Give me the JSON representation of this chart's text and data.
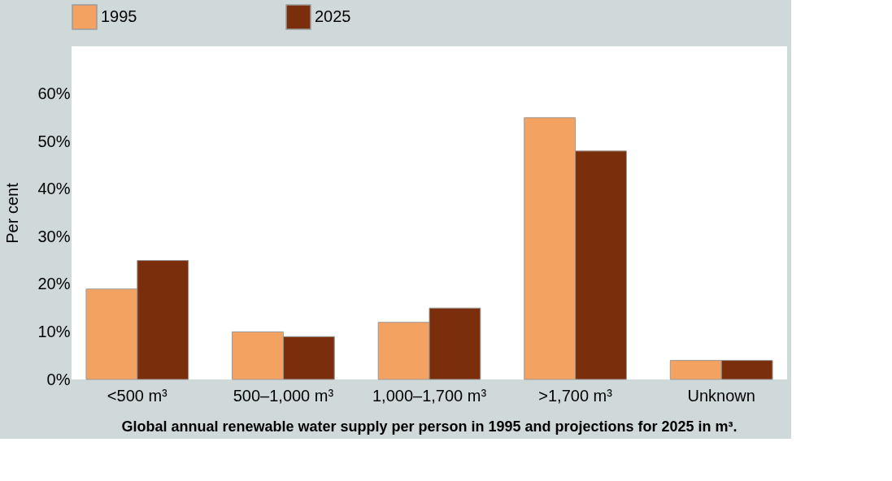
{
  "chart_data": {
    "type": "bar",
    "title": "Global annual renewable water supply per person in 1995 and projections for 2025 in m³.",
    "ylabel": "Per cent",
    "categories": [
      "<500 m³",
      "500–1,000 m³",
      "1,000–1,700 m³",
      ">1,700 m³",
      "Unknown"
    ],
    "series": [
      {
        "name": "1995",
        "color": "#f4a262",
        "values": [
          19,
          10,
          12,
          55,
          4
        ]
      },
      {
        "name": "2025",
        "color": "#7a2e0c",
        "values": [
          25,
          9,
          15,
          48,
          4
        ]
      }
    ],
    "ylim": [
      0,
      70
    ],
    "yticks": [
      {
        "value": 0,
        "label": "0%"
      },
      {
        "value": 10,
        "label": "10%"
      },
      {
        "value": 20,
        "label": "20%"
      },
      {
        "value": 30,
        "label": "30%"
      },
      {
        "value": 40,
        "label": "40%"
      },
      {
        "value": 50,
        "label": "50%"
      },
      {
        "value": 60,
        "label": "60%"
      }
    ],
    "grid": false,
    "legend": "top"
  }
}
